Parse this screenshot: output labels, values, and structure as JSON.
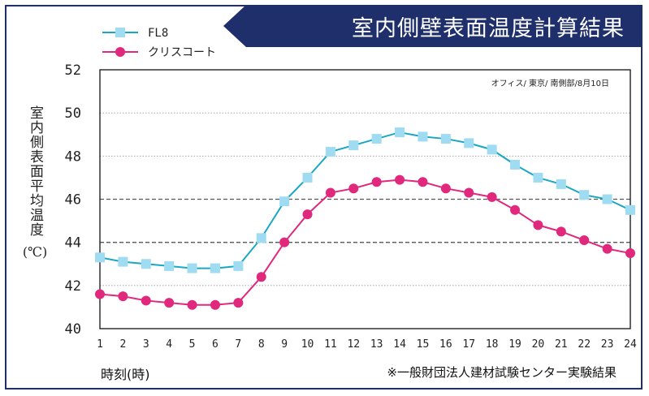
{
  "title": "室内側壁表面温度計算結果",
  "y_axis_label": "室内側表面平均温度",
  "y_axis_unit": "(℃)",
  "x_axis_label": "時刻(時)",
  "source_note": "※一般財団法人建材試験センター実験結果",
  "annotation": "オフィス/ 東京/ 南側部/8月10日",
  "colors": {
    "frame": "#1e2f6b",
    "fl8": "#1aa7c4",
    "fl8_marker": "#9fdcf2",
    "crisscoat": "#e0287d"
  },
  "chart_data": {
    "type": "line",
    "x": [
      1,
      2,
      3,
      4,
      5,
      6,
      7,
      8,
      9,
      10,
      11,
      12,
      13,
      14,
      15,
      16,
      17,
      18,
      19,
      20,
      21,
      22,
      23,
      24
    ],
    "series": [
      {
        "name": "FL8",
        "marker": "square",
        "values": [
          43.3,
          43.1,
          43.0,
          42.9,
          42.8,
          42.8,
          42.9,
          44.2,
          45.9,
          47.0,
          48.2,
          48.5,
          48.8,
          49.1,
          48.9,
          48.8,
          48.6,
          48.3,
          47.6,
          47.0,
          46.7,
          46.2,
          46.0,
          45.5
        ]
      },
      {
        "name": "クリスコート",
        "marker": "circle",
        "values": [
          41.6,
          41.5,
          41.3,
          41.2,
          41.1,
          41.1,
          41.2,
          42.4,
          44.0,
          45.3,
          46.3,
          46.5,
          46.8,
          46.9,
          46.8,
          46.5,
          46.3,
          46.1,
          45.5,
          44.8,
          44.5,
          44.1,
          43.7,
          43.5
        ]
      }
    ],
    "ylim": [
      40,
      52
    ],
    "yticks": [
      40,
      42,
      44,
      46,
      48,
      50,
      52
    ],
    "xticks": [
      "1",
      "2",
      "3",
      "4",
      "5",
      "6",
      "7",
      "8",
      "9",
      "10",
      "11",
      "12",
      "13",
      "14",
      "15",
      "16",
      "17",
      "18",
      "19",
      "20",
      "21",
      "22",
      "23",
      "24"
    ],
    "gridlines": [
      42,
      44,
      46,
      48,
      50
    ],
    "dashed_gridlines": [
      44,
      46
    ],
    "legend_position": "top-left"
  }
}
